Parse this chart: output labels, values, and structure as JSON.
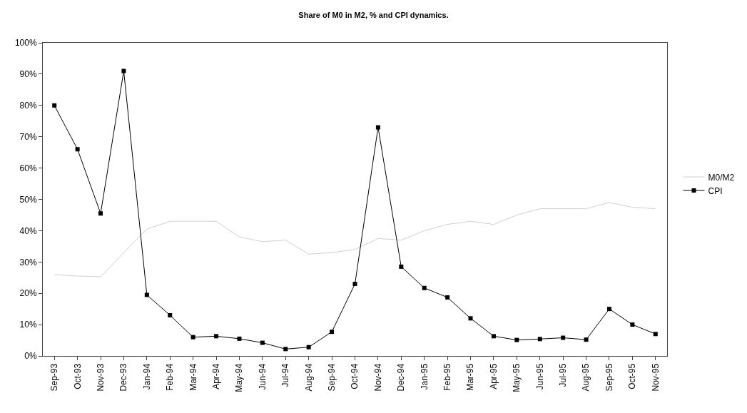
{
  "chart_data": {
    "type": "line",
    "title": "Share of M0 in M2, % and CPI dynamics.",
    "categories": [
      "Sep-93",
      "Oct-93",
      "Nov-93",
      "Dec-93",
      "Jan-94",
      "Feb-94",
      "Mar-94",
      "Apr-94",
      "May-94",
      "Jun-94",
      "Jul-94",
      "Aug-94",
      "Sep-94",
      "Oct-94",
      "Nov-94",
      "Dec-94",
      "Jan-95",
      "Feb-95",
      "Mar-95",
      "Apr-95",
      "May-95",
      "Jun-95",
      "Jul-95",
      "Aug-95",
      "Sep-95",
      "Oct-95",
      "Nov-95"
    ],
    "series": [
      {
        "name": "M0/M2",
        "color": "#d0d0d0",
        "marker": "none",
        "values": [
          26,
          25.5,
          25.3,
          33,
          40.5,
          43,
          43,
          43,
          38,
          36.5,
          37,
          32.5,
          33,
          34,
          37.5,
          37,
          40,
          42,
          43,
          42,
          45,
          47,
          47,
          47,
          49,
          47.5,
          47
        ]
      },
      {
        "name": "CPI",
        "color": "#000000",
        "marker": "square",
        "values": [
          80,
          66,
          45.5,
          91,
          19.5,
          13,
          6,
          6.3,
          5.5,
          4.2,
          2.2,
          2.8,
          7.7,
          23,
          73,
          28.5,
          21.7,
          18.7,
          12,
          6.3,
          5.1,
          5.4,
          5.8,
          5.2,
          15,
          10,
          7
        ]
      }
    ],
    "ylim": [
      0,
      100
    ],
    "yticks": [
      {
        "value": 0,
        "label": "0%"
      },
      {
        "value": 10,
        "label": "10%"
      },
      {
        "value": 20,
        "label": "20%"
      },
      {
        "value": 30,
        "label": "30%"
      },
      {
        "value": 40,
        "label": "40%"
      },
      {
        "value": 50,
        "label": "50%"
      },
      {
        "value": 60,
        "label": "60%"
      },
      {
        "value": 70,
        "label": "70%"
      },
      {
        "value": 80,
        "label": "80%"
      },
      {
        "value": 90,
        "label": "90%"
      },
      {
        "value": 100,
        "label": "100%"
      }
    ],
    "legend": "right"
  }
}
